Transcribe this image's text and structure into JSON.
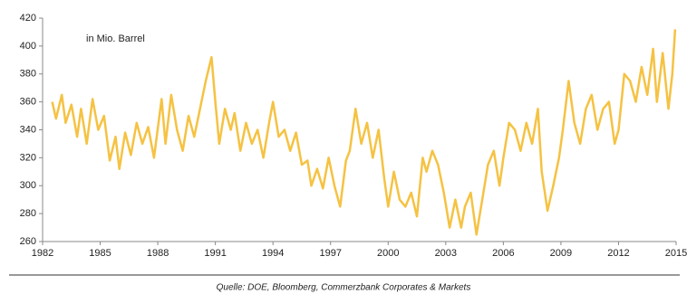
{
  "chart_data": {
    "type": "line",
    "annotation": "in Mio. Barrel",
    "source": "Quelle: DOE, Bloomberg, Commerzbank Corporates & Markets",
    "xlim": [
      1982,
      2015
    ],
    "xticks": [
      1982,
      1985,
      1988,
      1991,
      1994,
      1997,
      2000,
      2003,
      2006,
      2009,
      2012,
      2015
    ],
    "ylim": [
      260,
      420
    ],
    "yticks": [
      260,
      280,
      300,
      320,
      340,
      360,
      380,
      400,
      420
    ],
    "grid": false,
    "series": [
      {
        "color": "#f5c242",
        "x": [
          1982.5,
          1982.7,
          1983.0,
          1983.2,
          1983.5,
          1983.8,
          1984.0,
          1984.3,
          1984.6,
          1984.9,
          1985.2,
          1985.5,
          1985.8,
          1986.0,
          1986.3,
          1986.6,
          1986.9,
          1987.2,
          1987.5,
          1987.8,
          1988.2,
          1988.4,
          1988.7,
          1989.0,
          1989.3,
          1989.6,
          1989.9,
          1990.2,
          1990.5,
          1990.8,
          1991.0,
          1991.2,
          1991.5,
          1991.8,
          1992.0,
          1992.3,
          1992.6,
          1992.9,
          1993.2,
          1993.5,
          1993.8,
          1994.0,
          1994.3,
          1994.6,
          1994.9,
          1995.2,
          1995.5,
          1995.8,
          1996.0,
          1996.3,
          1996.6,
          1996.9,
          1997.2,
          1997.5,
          1997.8,
          1998.0,
          1998.3,
          1998.6,
          1998.9,
          1999.2,
          1999.5,
          1999.8,
          2000.0,
          2000.3,
          2000.6,
          2000.9,
          2001.2,
          2001.5,
          2001.8,
          2002.0,
          2002.3,
          2002.6,
          2002.9,
          2003.2,
          2003.5,
          2003.8,
          2004.0,
          2004.3,
          2004.6,
          2004.9,
          2005.2,
          2005.5,
          2005.8,
          2006.0,
          2006.3,
          2006.6,
          2006.9,
          2007.2,
          2007.5,
          2007.8,
          2008.0,
          2008.3,
          2008.6,
          2008.9,
          2009.1,
          2009.4,
          2009.7,
          2010.0,
          2010.3,
          2010.6,
          2010.9,
          2011.2,
          2011.5,
          2011.8,
          2012.0,
          2012.3,
          2012.6,
          2012.9,
          2013.2,
          2013.5,
          2013.8,
          2014.0,
          2014.3,
          2014.6,
          2014.8,
          2014.95
        ],
        "values": [
          360,
          348,
          365,
          345,
          358,
          335,
          355,
          330,
          362,
          340,
          350,
          318,
          335,
          312,
          338,
          322,
          345,
          330,
          342,
          320,
          362,
          330,
          365,
          340,
          325,
          350,
          335,
          355,
          375,
          392,
          360,
          330,
          355,
          340,
          352,
          325,
          345,
          330,
          340,
          320,
          345,
          360,
          335,
          340,
          325,
          338,
          315,
          318,
          300,
          312,
          298,
          320,
          300,
          285,
          318,
          325,
          355,
          330,
          345,
          320,
          340,
          305,
          285,
          310,
          290,
          285,
          295,
          278,
          320,
          310,
          325,
          315,
          295,
          270,
          290,
          270,
          285,
          295,
          265,
          290,
          315,
          325,
          300,
          320,
          345,
          340,
          325,
          345,
          330,
          355,
          310,
          282,
          300,
          320,
          340,
          375,
          345,
          330,
          355,
          365,
          340,
          355,
          360,
          330,
          340,
          380,
          375,
          360,
          385,
          365,
          398,
          360,
          395,
          355,
          380,
          412
        ]
      }
    ]
  }
}
